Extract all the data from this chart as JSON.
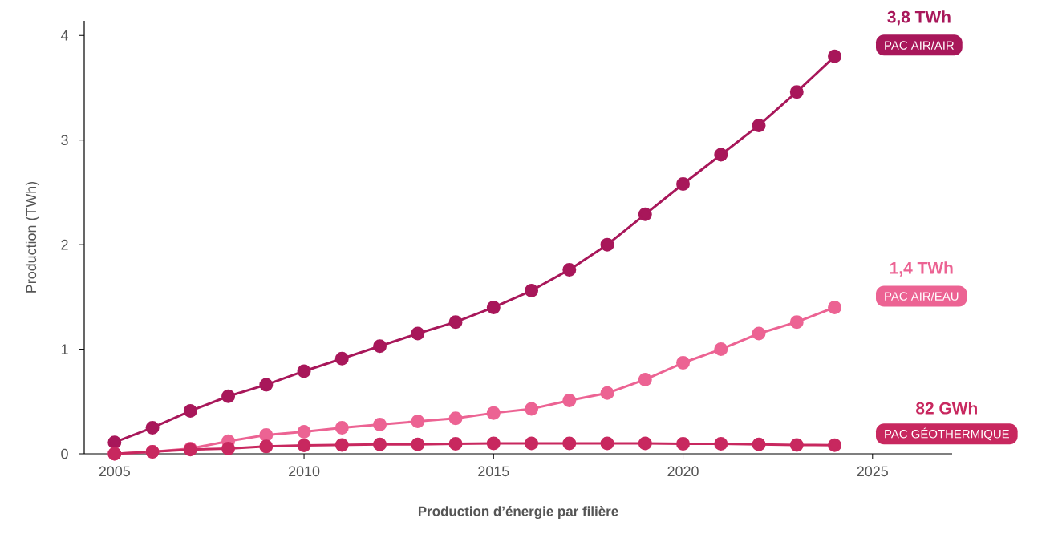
{
  "chart_data": {
    "type": "line",
    "xlabel": "Production d’énergie par filière",
    "ylabel": "Production (TWh)",
    "x": [
      2005,
      2006,
      2007,
      2008,
      2009,
      2010,
      2011,
      2012,
      2013,
      2014,
      2015,
      2016,
      2017,
      2018,
      2019,
      2020,
      2021,
      2022,
      2023,
      2024
    ],
    "series": [
      {
        "name": "PAC AIR/AIR",
        "color": "#a8175a",
        "values": [
          0.11,
          0.25,
          0.41,
          0.55,
          0.66,
          0.79,
          0.91,
          1.03,
          1.15,
          1.26,
          1.4,
          1.56,
          1.76,
          2.0,
          2.29,
          2.58,
          2.86,
          3.14,
          3.46,
          3.8
        ]
      },
      {
        "name": "PAC AIR/EAU",
        "color": "#ec6393",
        "values": [
          0.0,
          0.02,
          0.05,
          0.12,
          0.18,
          0.21,
          0.25,
          0.28,
          0.31,
          0.34,
          0.39,
          0.43,
          0.51,
          0.58,
          0.71,
          0.87,
          1.0,
          1.15,
          1.26,
          1.4
        ]
      },
      {
        "name": "PAC GÉOTHERMIQUE",
        "color": "#c8285f",
        "values": [
          0.0,
          0.02,
          0.04,
          0.05,
          0.07,
          0.08,
          0.085,
          0.09,
          0.09,
          0.095,
          0.1,
          0.1,
          0.1,
          0.1,
          0.1,
          0.095,
          0.095,
          0.09,
          0.085,
          0.082
        ]
      }
    ],
    "annotations": [
      "3,8 TWh",
      "1,4 TWh",
      "82 GWh"
    ],
    "xlim": [
      2004.2,
      2027.1
    ],
    "ylim": [
      0,
      4.14
    ],
    "xticks": [
      2005,
      2010,
      2015,
      2020,
      2025
    ],
    "yticks": [
      0,
      1,
      2,
      3,
      4
    ],
    "grid": false,
    "legend": false,
    "marker": "circle",
    "line_style": "solid"
  }
}
